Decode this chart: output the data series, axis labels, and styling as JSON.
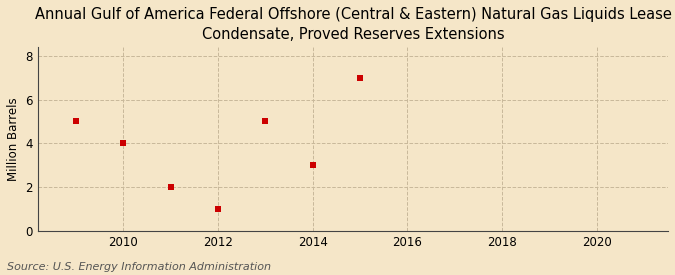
{
  "title": "Annual Gulf of America Federal Offshore (Central & Eastern) Natural Gas Liquids Lease\nCondensate, Proved Reserves Extensions",
  "ylabel": "Million Barrels",
  "source": "Source: U.S. Energy Information Administration",
  "x_data": [
    2009,
    2010,
    2011,
    2012,
    2013,
    2014,
    2015
  ],
  "y_data": [
    5.0,
    4.0,
    2.0,
    1.0,
    5.0,
    3.0,
    7.0
  ],
  "marker_color": "#cc0000",
  "marker": "s",
  "marker_size": 4,
  "xlim": [
    2008.2,
    2021.5
  ],
  "ylim": [
    0,
    8.4
  ],
  "xticks": [
    2010,
    2012,
    2014,
    2016,
    2018,
    2020
  ],
  "yticks": [
    0,
    2,
    4,
    6,
    8
  ],
  "background_color": "#f5e6c8",
  "plot_background_color": "#f5e6c8",
  "grid_color": "#c8b89a",
  "title_fontsize": 10.5,
  "label_fontsize": 8.5,
  "tick_fontsize": 8.5,
  "source_fontsize": 8
}
